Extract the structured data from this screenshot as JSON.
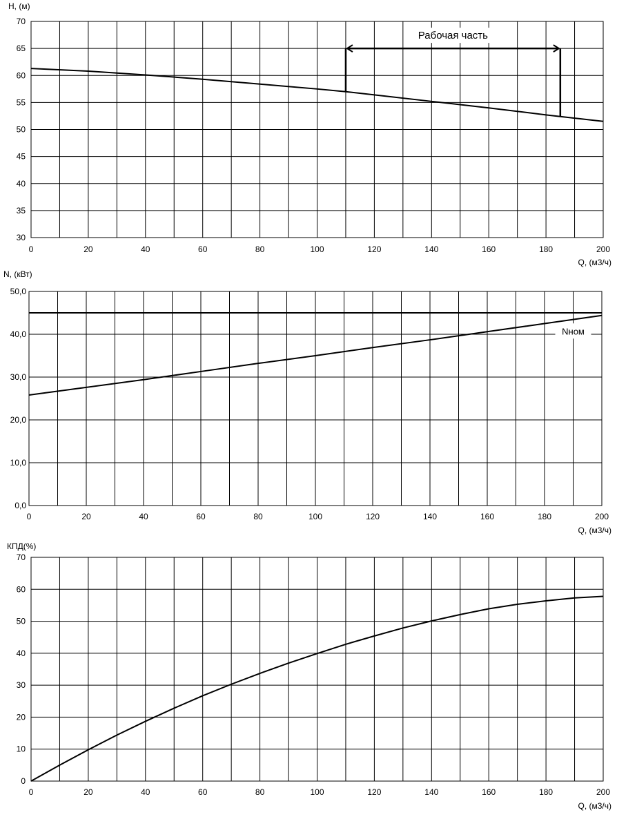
{
  "chart_data": [
    {
      "type": "line",
      "ylabel": "H, (м)",
      "xlabel": "Q, (м3/ч)",
      "xlim": [
        0,
        200
      ],
      "ylim": [
        30,
        70
      ],
      "grid": true,
      "x_ticks": [
        "0",
        "20",
        "40",
        "60",
        "80",
        "100",
        "120",
        "140",
        "160",
        "180",
        "200"
      ],
      "y_ticks": [
        "30",
        "35",
        "40",
        "45",
        "50",
        "55",
        "60",
        "65",
        "70"
      ],
      "series": [
        {
          "x": [
            0,
            20,
            40,
            60,
            80,
            100,
            110,
            120,
            140,
            160,
            180,
            185,
            200
          ],
          "values": [
            61.3,
            60.8,
            60.1,
            59.3,
            58.4,
            57.5,
            57.0,
            56.4,
            55.2,
            54.0,
            52.7,
            52.4,
            51.5
          ]
        }
      ],
      "annotation": {
        "text": "Рабочая часть",
        "x_start": 110,
        "x_end": 185,
        "y_level": 65
      }
    },
    {
      "type": "line",
      "ylabel": "N, (кВт)",
      "xlabel": "Q, (м3/ч)",
      "xlim": [
        0,
        200
      ],
      "ylim": [
        0,
        50
      ],
      "grid": true,
      "x_ticks": [
        "0",
        "20",
        "40",
        "60",
        "80",
        "100",
        "120",
        "140",
        "160",
        "180",
        "200"
      ],
      "y_ticks": [
        "0,0",
        "10,0",
        "20,0",
        "30,0",
        "40,0",
        "50,0"
      ],
      "series": [
        {
          "x": [
            0,
            20,
            40,
            60,
            80,
            100,
            120,
            140,
            160,
            180,
            200
          ],
          "values": [
            25.8,
            27.6,
            29.4,
            31.3,
            33.2,
            35.0,
            36.9,
            38.7,
            40.6,
            42.5,
            44.4
          ]
        },
        {
          "name": "Nном",
          "x": [
            0,
            200
          ],
          "values": [
            45.0,
            45.0
          ]
        }
      ]
    },
    {
      "type": "line",
      "ylabel": "КПД(%)",
      "xlabel": "Q, (м3/ч)",
      "xlim": [
        0,
        200
      ],
      "ylim": [
        0,
        70
      ],
      "grid": true,
      "x_ticks": [
        "0",
        "20",
        "40",
        "60",
        "80",
        "100",
        "120",
        "140",
        "160",
        "180",
        "200"
      ],
      "y_ticks": [
        "0",
        "10",
        "20",
        "30",
        "40",
        "50",
        "60",
        "70"
      ],
      "series": [
        {
          "x": [
            0,
            10,
            20,
            30,
            40,
            50,
            60,
            70,
            80,
            90,
            100,
            110,
            120,
            130,
            140,
            150,
            160,
            170,
            180,
            190,
            200
          ],
          "values": [
            0,
            5.0,
            9.8,
            14.4,
            18.7,
            22.8,
            26.7,
            30.3,
            33.7,
            36.9,
            39.9,
            42.8,
            45.4,
            47.9,
            50.1,
            52.1,
            53.9,
            55.3,
            56.4,
            57.3,
            57.8
          ]
        }
      ]
    }
  ]
}
